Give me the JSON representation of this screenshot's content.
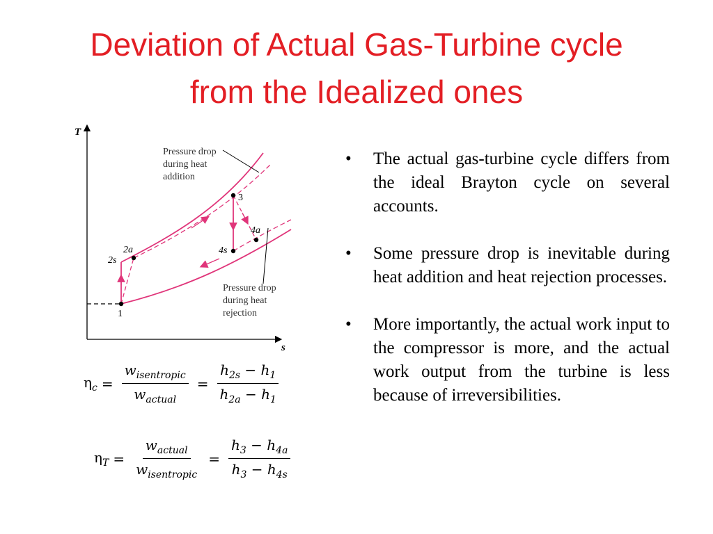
{
  "title": {
    "line1": "Deviation of Actual Gas-Turbine cycle",
    "line2": "from the Idealized ones"
  },
  "bullets": [
    "The actual gas-turbine cycle differs from the ideal Brayton cycle on several accounts.",
    "Some pressure drop is inevitable during heat addition and heat rejection processes.",
    "More importantly, the actual work input to the compressor is more, and the actual work output from the turbine is less because of irreversibilities."
  ],
  "bullet_symbol": "•",
  "diagram": {
    "axis_y": "T",
    "axis_x": "s",
    "points": {
      "p1": "1",
      "p2s": "2s",
      "p2a": "2a",
      "p3": "3",
      "p4s": "4s",
      "p4a": "4a"
    },
    "annotation_top": [
      "Pressure drop",
      "during heat",
      "addition"
    ],
    "annotation_bottom": [
      "Pressure drop",
      "during heat",
      "rejection"
    ],
    "curve_color": "#e0357a"
  },
  "formula_c": {
    "eta": "η",
    "eta_sub": "c",
    "eq": "=",
    "f1_num": "w",
    "f1_num_sub": "isentropic",
    "f1_den": "w",
    "f1_den_sub": "actual",
    "f2_num_a": "h",
    "f2_num_a_sub": "2s",
    "f2_num_op": "−",
    "f2_num_b": "h",
    "f2_num_b_sub": "1",
    "f2_den_a": "h",
    "f2_den_a_sub": "2a",
    "f2_den_op": "−",
    "f2_den_b": "h",
    "f2_den_b_sub": "1"
  },
  "formula_t": {
    "eta": "η",
    "eta_sub": "T",
    "eq": "=",
    "f1_num": "w",
    "f1_num_sub": "actual",
    "f1_den": "w",
    "f1_den_sub": "isentropic",
    "f2_num_a": "h",
    "f2_num_a_sub": "3",
    "f2_num_op": "−",
    "f2_num_b": "h",
    "f2_num_b_sub": "4a",
    "f2_den_a": "h",
    "f2_den_a_sub": "3",
    "f2_den_op": "−",
    "f2_den_b": "h",
    "f2_den_b_sub": "4s"
  }
}
